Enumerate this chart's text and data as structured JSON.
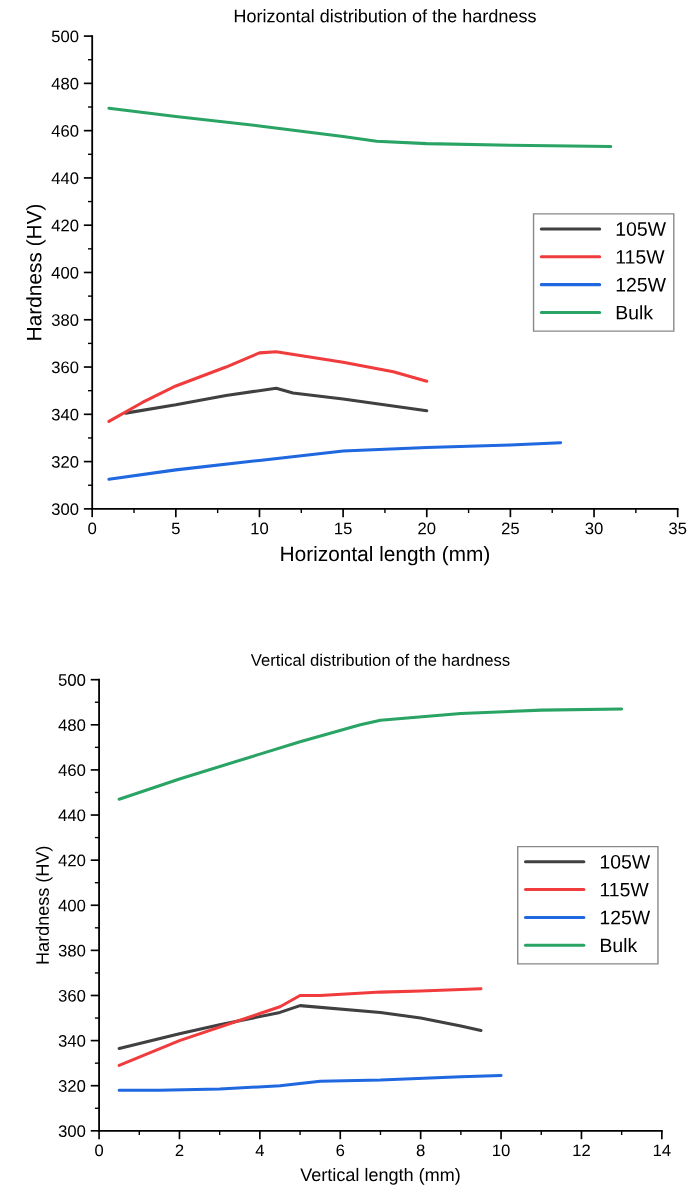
{
  "chart_data": [
    {
      "type": "line",
      "title": "Horizontal distribution of the hardness",
      "xlabel": "Horizontal length (mm)",
      "ylabel": "Hardness (HV)",
      "xlim": [
        0,
        35
      ],
      "xticks": [
        0,
        5,
        10,
        15,
        20,
        25,
        30,
        35
      ],
      "ylim": [
        300,
        500
      ],
      "yticks": [
        300,
        320,
        340,
        360,
        380,
        400,
        420,
        440,
        460,
        480,
        500
      ],
      "grid": false,
      "legend": "right",
      "line_style": "solid",
      "marker": "none",
      "series": [
        {
          "name": "105W",
          "color": "#404040",
          "x": [
            2,
            5,
            8,
            11,
            12,
            15,
            20
          ],
          "values": [
            340.5,
            344,
            348,
            351,
            349,
            346.5,
            341.5
          ]
        },
        {
          "name": "115W",
          "color": "#f03c3c",
          "x": [
            1,
            3,
            5,
            8,
            10,
            11,
            15,
            18,
            20
          ],
          "values": [
            337,
            345,
            352,
            360,
            366,
            366.5,
            362,
            358,
            354
          ]
        },
        {
          "name": "125W",
          "color": "#1f68e0",
          "x": [
            1,
            5,
            10,
            15,
            20,
            25,
            28
          ],
          "values": [
            312.5,
            316.5,
            320.5,
            324.5,
            326,
            327,
            328
          ]
        },
        {
          "name": "Bulk",
          "color": "#2aa464",
          "x": [
            1,
            5,
            10,
            15,
            17,
            20,
            25,
            31
          ],
          "values": [
            469.5,
            466,
            462,
            457.5,
            455.5,
            454.5,
            453.8,
            453.3
          ]
        }
      ]
    },
    {
      "type": "line",
      "title": "Vertical distribution of the hardness",
      "xlabel": "Vertical length (mm)",
      "ylabel": "Hardness (HV)",
      "xlim": [
        0,
        14
      ],
      "xticks": [
        0,
        2,
        4,
        6,
        8,
        10,
        12,
        14
      ],
      "ylim": [
        300,
        500
      ],
      "yticks": [
        300,
        320,
        340,
        360,
        380,
        400,
        420,
        440,
        460,
        480,
        500
      ],
      "grid": false,
      "legend": "right",
      "line_style": "solid",
      "marker": "none",
      "series": [
        {
          "name": "105W",
          "color": "#404040",
          "x": [
            0.5,
            2,
            3,
            4.5,
            5,
            7,
            8,
            9,
            9.5
          ],
          "values": [
            336.5,
            343,
            347,
            352.5,
            355.5,
            352.5,
            350,
            346.5,
            344.5
          ]
        },
        {
          "name": "115W",
          "color": "#f03c3c",
          "x": [
            0.5,
            2,
            4,
            4.5,
            5,
            5.5,
            7,
            8,
            9.5
          ],
          "values": [
            329,
            340,
            352,
            355,
            360,
            360,
            361.5,
            362,
            363
          ]
        },
        {
          "name": "125W",
          "color": "#1f68e0",
          "x": [
            0.5,
            1.5,
            3,
            4.5,
            5.5,
            7,
            9,
            10
          ],
          "values": [
            318,
            318,
            318.5,
            320,
            322,
            322.5,
            324,
            324.5
          ]
        },
        {
          "name": "Bulk",
          "color": "#2aa464",
          "x": [
            0.5,
            2,
            4,
            5,
            6.5,
            7,
            9,
            11,
            13
          ],
          "values": [
            447,
            456,
            467,
            472.5,
            480,
            482,
            485,
            486.5,
            487
          ]
        }
      ]
    }
  ]
}
